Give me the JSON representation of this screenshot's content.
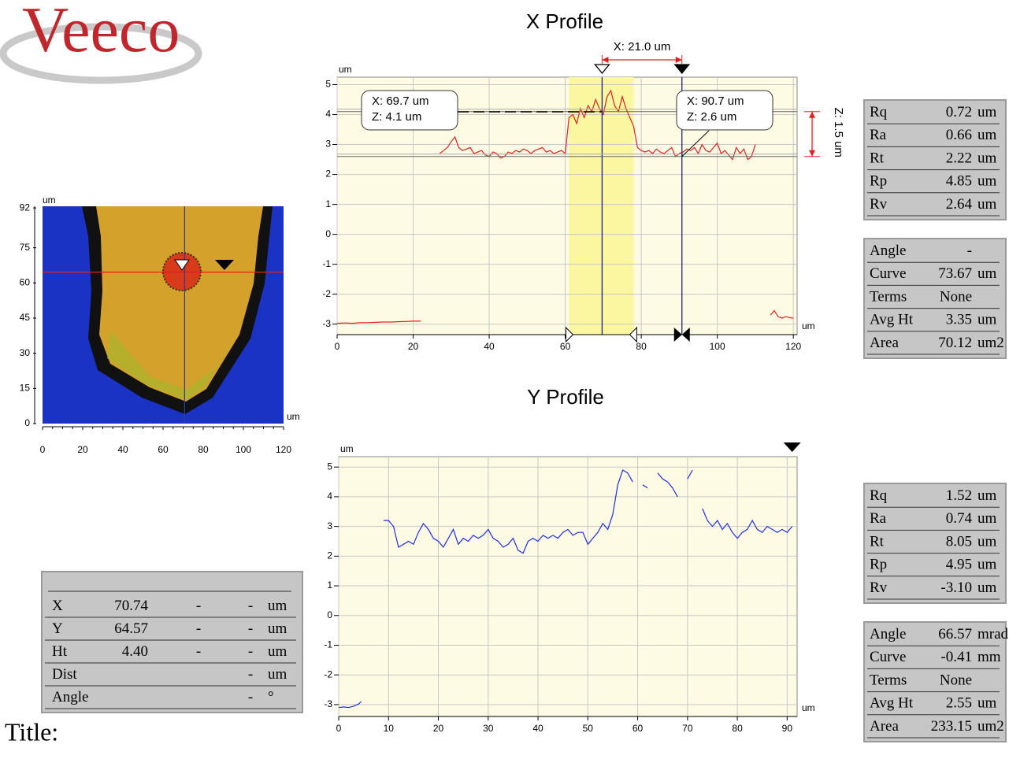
{
  "logo": "Veeco",
  "title_label": "Title:",
  "image_panel": {
    "x_unit": "um",
    "y_unit": "um",
    "xlim": [
      0,
      120
    ],
    "ylim": [
      0,
      92.7
    ],
    "xticks": [
      0,
      20,
      40,
      60,
      80,
      100,
      120
    ],
    "yticks": [
      0,
      15,
      30,
      45,
      60,
      75,
      92
    ]
  },
  "x_profile": {
    "type": "line",
    "title": "X Profile",
    "y_unit": "um",
    "x_unit": "um",
    "background": "#fdfbe3",
    "band_color": "#fbf7a0",
    "band": [
      61,
      78
    ],
    "grid": true,
    "xlim": [
      0,
      121
    ],
    "ylim": [
      -3.35,
      5.25
    ],
    "xticks": [
      0,
      20,
      40,
      60,
      80,
      100,
      120
    ],
    "yticks": [
      5,
      4,
      3,
      2,
      1,
      0,
      -1,
      -2,
      -3
    ],
    "x": [
      0,
      2,
      4,
      6,
      8,
      10,
      12,
      14,
      16,
      18,
      20,
      22,
      24,
      27,
      28,
      29,
      30,
      31,
      32,
      33,
      34,
      35,
      36,
      37,
      38,
      39,
      40,
      41,
      42,
      43,
      44,
      45,
      46,
      47,
      48,
      49,
      50,
      51,
      52,
      53,
      54,
      55,
      56,
      57,
      58,
      59,
      60,
      61,
      62,
      63,
      64,
      65,
      66,
      67,
      68,
      69,
      70,
      71,
      72,
      73,
      74,
      75,
      76,
      77,
      78,
      79,
      80,
      81,
      82,
      83,
      84,
      85,
      86,
      87,
      88,
      89,
      90,
      91,
      92,
      93,
      94,
      95,
      96,
      97,
      98,
      99,
      100,
      101,
      102,
      103,
      104,
      105,
      106,
      107,
      108,
      109,
      110,
      112,
      114,
      115,
      116,
      117,
      118,
      119,
      120
    ],
    "series": [
      {
        "name": "X profile",
        "color": "#e02020",
        "values": [
          -2.97,
          -2.96,
          -2.97,
          -2.95,
          -2.95,
          -2.94,
          -2.93,
          -2.93,
          -2.92,
          -2.91,
          -2.9,
          -2.9,
          null,
          2.7,
          2.8,
          2.9,
          3.1,
          3.25,
          2.9,
          2.8,
          2.85,
          2.9,
          2.7,
          2.75,
          2.8,
          2.65,
          2.6,
          2.75,
          2.7,
          2.55,
          2.6,
          2.75,
          2.7,
          2.8,
          2.75,
          2.85,
          2.8,
          2.7,
          2.8,
          2.85,
          2.9,
          2.75,
          2.8,
          2.7,
          2.75,
          2.8,
          2.7,
          3.9,
          4.0,
          3.7,
          4.2,
          3.9,
          4.3,
          4.1,
          4.5,
          4.2,
          4.0,
          4.6,
          4.8,
          4.3,
          4.1,
          4.6,
          4.2,
          3.9,
          3.6,
          2.9,
          2.8,
          2.75,
          2.8,
          2.7,
          2.85,
          2.75,
          2.7,
          2.8,
          2.9,
          2.6,
          2.7,
          2.75,
          2.85,
          2.8,
          2.9,
          2.7,
          3.0,
          2.8,
          2.75,
          2.9,
          3.05,
          2.7,
          2.8,
          2.65,
          2.5,
          2.9,
          2.7,
          2.85,
          2.5,
          2.6,
          3.0,
          null,
          -2.7,
          -2.55,
          -2.75,
          -2.8,
          -2.75,
          -2.78,
          -2.8
        ]
      }
    ],
    "cursors": [
      {
        "x": 69.7,
        "z": 4.1,
        "x_label": "X: 69.7 um",
        "z_label": "Z: 4.1 um"
      },
      {
        "x": 90.7,
        "z": 2.6,
        "x_label": "X: 90.7 um",
        "z_label": "Z: 2.6 um"
      }
    ],
    "dx_label": "X: 21.0 um",
    "dz_label": "Z: 1.5 um"
  },
  "y_profile": {
    "type": "line",
    "title": "Y Profile",
    "y_unit": "um",
    "x_unit": "um",
    "background": "#fdfbe3",
    "grid": true,
    "xlim": [
      0,
      92
    ],
    "ylim": [
      -3.4,
      5.35
    ],
    "xticks": [
      0,
      10,
      20,
      30,
      40,
      50,
      60,
      70,
      80,
      90
    ],
    "yticks": [
      5,
      4,
      3,
      2,
      1,
      0,
      -1,
      -2,
      -3
    ],
    "marker_x": 91,
    "x": [
      0,
      1,
      2,
      3,
      4,
      4.5,
      6,
      9,
      10,
      11,
      12,
      13,
      14,
      15,
      16,
      17,
      18,
      19,
      20,
      21,
      22,
      23,
      24,
      25,
      26,
      27,
      28,
      29,
      30,
      31,
      32,
      33,
      34,
      35,
      36,
      37,
      38,
      39,
      40,
      41,
      42,
      43,
      44,
      45,
      46,
      47,
      48,
      49,
      50,
      51,
      52,
      53,
      54,
      55,
      56,
      57,
      58,
      59,
      60,
      61,
      62,
      62.5,
      64,
      65,
      66,
      67,
      68,
      69,
      70,
      71,
      72,
      73,
      74,
      75,
      76,
      77,
      78,
      79,
      80,
      81,
      82,
      83,
      84,
      85,
      86,
      87,
      88,
      89,
      90,
      91
    ],
    "series": [
      {
        "name": "Y profile",
        "color": "#1f2ee0",
        "values": [
          -3.1,
          -3.08,
          -3.1,
          -3.05,
          -2.98,
          -2.9,
          null,
          3.2,
          3.2,
          3.0,
          2.3,
          2.4,
          2.5,
          2.4,
          2.8,
          3.1,
          2.9,
          2.6,
          2.5,
          2.3,
          2.6,
          2.9,
          2.4,
          2.6,
          2.5,
          2.7,
          2.6,
          2.7,
          2.9,
          2.6,
          2.5,
          2.3,
          2.4,
          2.6,
          2.2,
          2.1,
          2.5,
          2.6,
          2.5,
          2.7,
          2.6,
          2.7,
          2.6,
          2.8,
          2.9,
          2.7,
          2.8,
          2.8,
          2.4,
          2.6,
          2.8,
          3.1,
          2.9,
          3.4,
          4.4,
          4.9,
          4.8,
          4.5,
          null,
          4.4,
          4.3,
          null,
          4.8,
          4.6,
          4.5,
          4.3,
          4.0,
          null,
          4.6,
          4.9,
          null,
          3.6,
          3.2,
          3.0,
          3.2,
          2.9,
          3.1,
          2.8,
          2.6,
          2.8,
          2.9,
          3.2,
          2.9,
          2.8,
          3.0,
          2.9,
          2.8,
          2.9,
          2.8,
          3.0
        ]
      }
    ]
  },
  "position_table": {
    "rows": [
      [
        "X",
        "70.74",
        "-",
        "-",
        "um"
      ],
      [
        "Y",
        "64.57",
        "-",
        "-",
        "um"
      ],
      [
        "Ht",
        "4.40",
        "-",
        "-",
        "um"
      ],
      [
        "Dist",
        null,
        null,
        "-",
        "um"
      ],
      [
        "Angle",
        null,
        null,
        "-",
        "°"
      ]
    ]
  },
  "x_roughness": {
    "rows": [
      [
        "Rq",
        "0.72",
        "um"
      ],
      [
        "Ra",
        "0.66",
        "um"
      ],
      [
        "Rt",
        "2.22",
        "um"
      ],
      [
        "Rp",
        "4.85",
        "um"
      ],
      [
        "Rv",
        "2.64",
        "um"
      ]
    ]
  },
  "x_stats": {
    "rows": [
      [
        "Angle",
        "-",
        null
      ],
      [
        "Curve",
        "73.67",
        "um"
      ],
      [
        "Terms",
        "None",
        null
      ],
      [
        "Avg Ht",
        "3.35",
        "um"
      ],
      [
        "Area",
        "70.12",
        "um2"
      ]
    ]
  },
  "y_roughness": {
    "rows": [
      [
        "Rq",
        "1.52",
        "um"
      ],
      [
        "Ra",
        "0.74",
        "um"
      ],
      [
        "Rt",
        "8.05",
        "um"
      ],
      [
        "Rp",
        "4.95",
        "um"
      ],
      [
        "Rv",
        "-3.10",
        "um"
      ]
    ]
  },
  "y_stats": {
    "rows": [
      [
        "Angle",
        "66.57",
        "mrad"
      ],
      [
        "Curve",
        "-0.41",
        "mm"
      ],
      [
        "Terms",
        "None",
        null
      ],
      [
        "Avg Ht",
        "2.55",
        "um"
      ],
      [
        "Area",
        "233.15",
        "um2"
      ]
    ]
  }
}
